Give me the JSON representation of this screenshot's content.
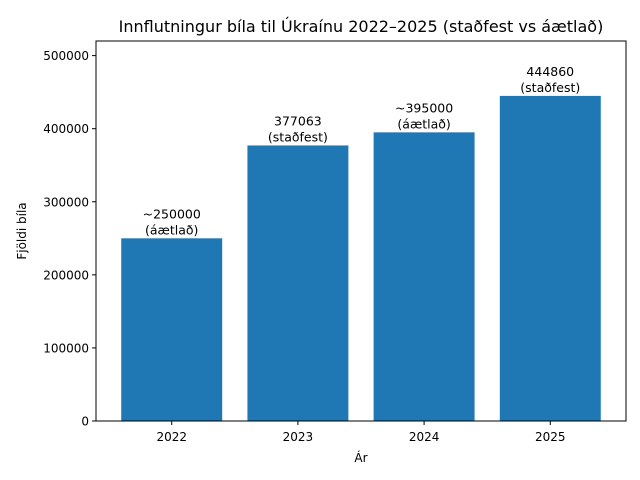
{
  "chart_data": {
    "type": "bar",
    "title": "Innflutningur bíla til Úkraínu 2022–2025 (staðfest vs áætlað)",
    "xlabel": "Ár",
    "ylabel": "Fjöldi bíla",
    "categories": [
      "2022",
      "2023",
      "2024",
      "2025"
    ],
    "values": [
      250000,
      377063,
      395000,
      444860
    ],
    "data_labels": [
      [
        "~250000",
        "(áætlað)"
      ],
      [
        "377063",
        "(staðfest)"
      ],
      [
        "~395000",
        "(áætlað)"
      ],
      [
        "444860",
        "(staðfest)"
      ]
    ],
    "ylim": [
      0,
      520000
    ],
    "yticks": [
      0,
      100000,
      200000,
      300000,
      400000,
      500000
    ],
    "ytick_labels": [
      "0",
      "100000",
      "200000",
      "300000",
      "400000",
      "500000"
    ],
    "grid": false,
    "bar_color": "#1f77b4"
  }
}
